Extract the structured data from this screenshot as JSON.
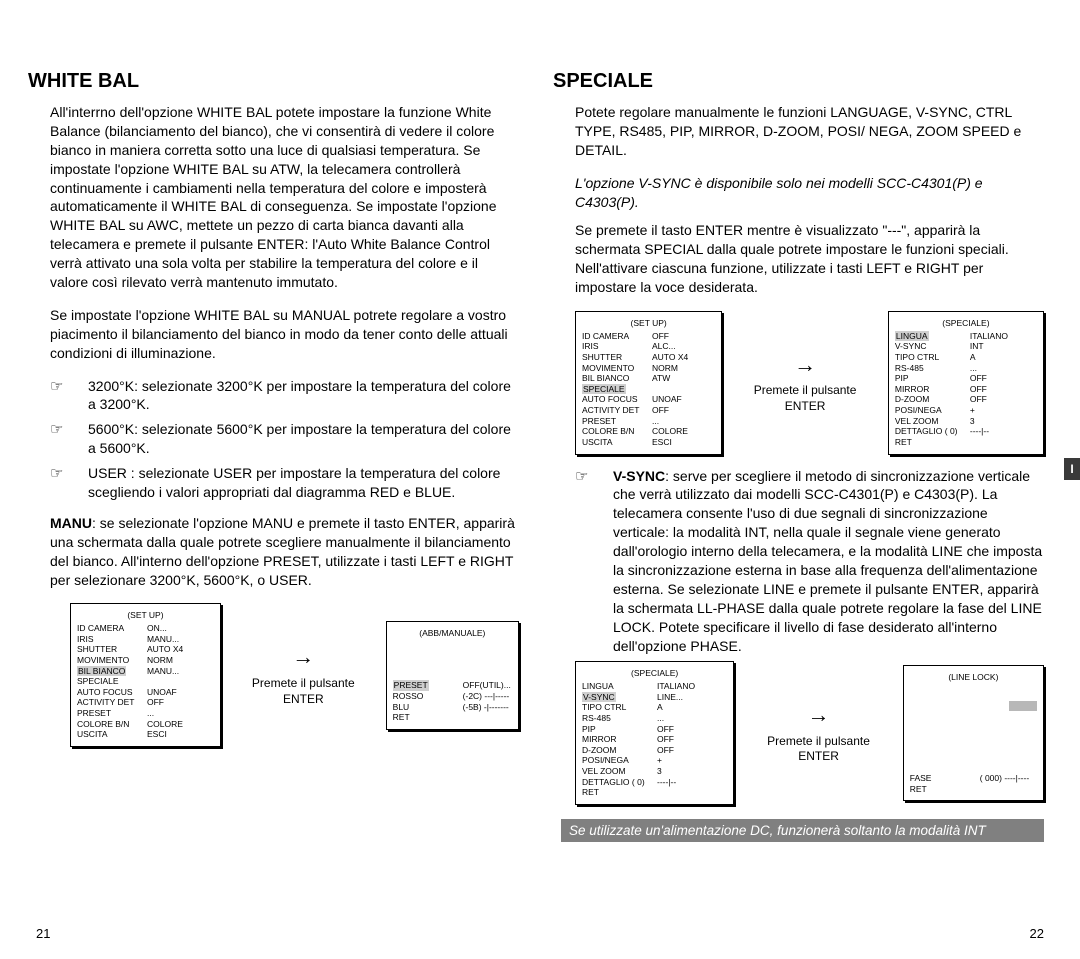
{
  "left": {
    "title": "WHITE BAL",
    "p1": "All'interrno dell'opzione WHITE BAL potete impostare la funzione White Balance (bilanciamento del bianco), che vi consentirà di vedere il colore bianco in maniera corretta sotto una luce di qualsiasi temperatura. Se impostate l'opzione WHITE BAL su ATW, la telecamera controllerà continuamente i cambiamenti nella temperatura del colore e imposterà automaticamente il WHITE BAL di conseguenza. Se impostate l'opzione WHITE BAL su AWC, mettete un pezzo di carta bianca davanti alla telecamera e premete il pulsante ENTER: l'Auto White Balance Control verrà attivato una sola volta per stabilire la temperatura del colore e il valore così rilevato verrà mantenuto immutato.",
    "p2": "Se impostate l'opzione WHITE BAL su MANUAL potrete regolare a vostro piacimento il bilanciamento del bianco in modo da tener conto delle attuali condizioni di illuminazione.",
    "b1": "3200°K: selezionate 3200°K per impostare la temperatura del colore a 3200°K.",
    "b2": "5600°K: selezionate 5600°K per impostare la temperatura del colore a 5600°K.",
    "b3": "USER : selezionate USER per impostare la temperatura del colore scegliendo i valori appropriati dal diagramma RED e BLUE.",
    "p3a": "MANU",
    "p3b": ": se selezionate l'opzione MANU e premete il tasto ENTER, apparirà una schermata dalla quale potrete scegliere manualmente il bilanciamento del bianco. All'interno dell'opzione PRESET, utilizzate i tasti LEFT e RIGHT per selezionare 3200°K, 5600°K, o USER.",
    "arrow_label": "Premete il pulsante ENTER",
    "menu1": {
      "title": "(SET UP)",
      "rows": [
        [
          "ID CAMERA",
          "ON..."
        ],
        [
          "IRIS",
          "MANU..."
        ],
        [
          "SHUTTER",
          "AUTO X4"
        ],
        [
          "MOVIMENTO",
          "NORM"
        ],
        [
          "",
          "MANU..."
        ],
        [
          "SPECIALE",
          ""
        ],
        [
          "AUTO FOCUS",
          "UNOAF"
        ],
        [
          "ACTIVITY DET",
          "OFF"
        ],
        [
          "PRESET",
          "..."
        ],
        [
          "COLORE B/N",
          "COLORE"
        ],
        [
          "USCITA",
          "ESCI"
        ]
      ],
      "hl_row": 4,
      "hl_label": "BIL BIANCO"
    },
    "menu2": {
      "title": "(ABB/MANUALE)",
      "rows": [
        [
          "",
          "OFF(UTIL)..."
        ],
        [
          "ROSSO",
          "(-2C) ---|-----"
        ],
        [
          "BLU",
          "(-5B) -|-------"
        ],
        [
          "RET",
          ""
        ]
      ],
      "hl_row": 0,
      "hl_label": "PRESET"
    },
    "page": "21"
  },
  "right": {
    "title": "SPECIALE",
    "p1": "Potete regolare manualmente le funzioni LANGUAGE, V-SYNC, CTRL TYPE, RS485, PIP, MIRROR, D-ZOOM, POSI/ NEGA, ZOOM SPEED e DETAIL.",
    "note": "L'opzione V-SYNC è disponibile solo nei modelli SCC-C4301(P) e C4303(P).",
    "p2": "Se premete il tasto ENTER mentre è visualizzato \"---\", apparirà la schermata SPECIAL dalla quale potrete impostare le funzioni speciali. Nell'attivare ciascuna funzione, utilizzate i tasti LEFT e RIGHT per impostare la voce desiderata.",
    "arrow_label": "Premete il pulsante ENTER",
    "menu1": {
      "title": "(SET UP)",
      "rows": [
        [
          "ID CAMERA",
          "OFF"
        ],
        [
          "IRIS",
          "ALC..."
        ],
        [
          "SHUTTER",
          "AUTO X4"
        ],
        [
          "MOVIMENTO",
          "NORM"
        ],
        [
          "BIL BIANCO",
          "ATW"
        ],
        [
          "",
          ""
        ],
        [
          "AUTO FOCUS",
          "UNOAF"
        ],
        [
          "ACTIVITY DET",
          "OFF"
        ],
        [
          "PRESET",
          "..."
        ],
        [
          "COLORE B/N",
          "COLORE"
        ],
        [
          "USCITA",
          "ESCI"
        ]
      ],
      "hl_row": 5,
      "hl_label": "SPECIALE"
    },
    "menu2": {
      "title": "(SPECIALE)",
      "rows": [
        [
          "",
          "ITALIANO"
        ],
        [
          "V-SYNC",
          "INT"
        ],
        [
          "TIPO CTRL",
          "A"
        ],
        [
          "RS-485",
          "..."
        ],
        [
          "PIP",
          "OFF"
        ],
        [
          "MIRROR",
          "OFF"
        ],
        [
          "D-ZOOM",
          "OFF"
        ],
        [
          "POSI/NEGA",
          "+"
        ],
        [
          "VEL ZOOM",
          "3"
        ],
        [
          "DETTAGLIO ( 0)",
          "----|--"
        ],
        [
          "RET",
          ""
        ]
      ],
      "hl_row": 0,
      "hl_label": "LINGUA"
    },
    "vsync_label": "V-SYNC",
    "vsync_text": ": serve per scegliere il metodo di sincronizzazione verticale che verrà utilizzato dai modelli SCC-C4301(P) e C4303(P). La telecamera consente l'uso di due segnali di sincronizzazione verticale: la modalità INT, nella quale il segnale viene generato dall'orologio interno della telecamera, e la modalità LINE che imposta la sincronizzazione esterna in base alla frequenza dell'alimentazione esterna. Se selezionate LINE e premete il pulsante ENTER, apparirà la schermata LL-PHASE dalla quale potrete regolare la fase del LINE LOCK. Potete specificare il livello di fase desiderato all'interno dell'opzione PHASE.",
    "menu3": {
      "title": "(SPECIALE)",
      "rows": [
        [
          "LINGUA",
          "ITALIANO"
        ],
        [
          "",
          "LINE..."
        ],
        [
          "TIPO CTRL",
          "A"
        ],
        [
          "RS-485",
          "..."
        ],
        [
          "PIP",
          "OFF"
        ],
        [
          "MIRROR",
          "OFF"
        ],
        [
          "D-ZOOM",
          "OFF"
        ],
        [
          "POSI/NEGA",
          "+"
        ],
        [
          "VEL ZOOM",
          "3"
        ],
        [
          "DETTAGLIO ( 0)",
          "----|--"
        ],
        [
          "RET",
          ""
        ]
      ],
      "hl_row": 1,
      "hl_label": "V-SYNC"
    },
    "menu4": {
      "title": "(LINE LOCK)",
      "fase_label": "FASE",
      "fase_val": "( 000)   ----|----",
      "ret": "RET"
    },
    "footer": "Se utilizzate un'alimentazione DC, funzionerà soltanto la modalità INT",
    "page": "22"
  },
  "side_tab": "I"
}
